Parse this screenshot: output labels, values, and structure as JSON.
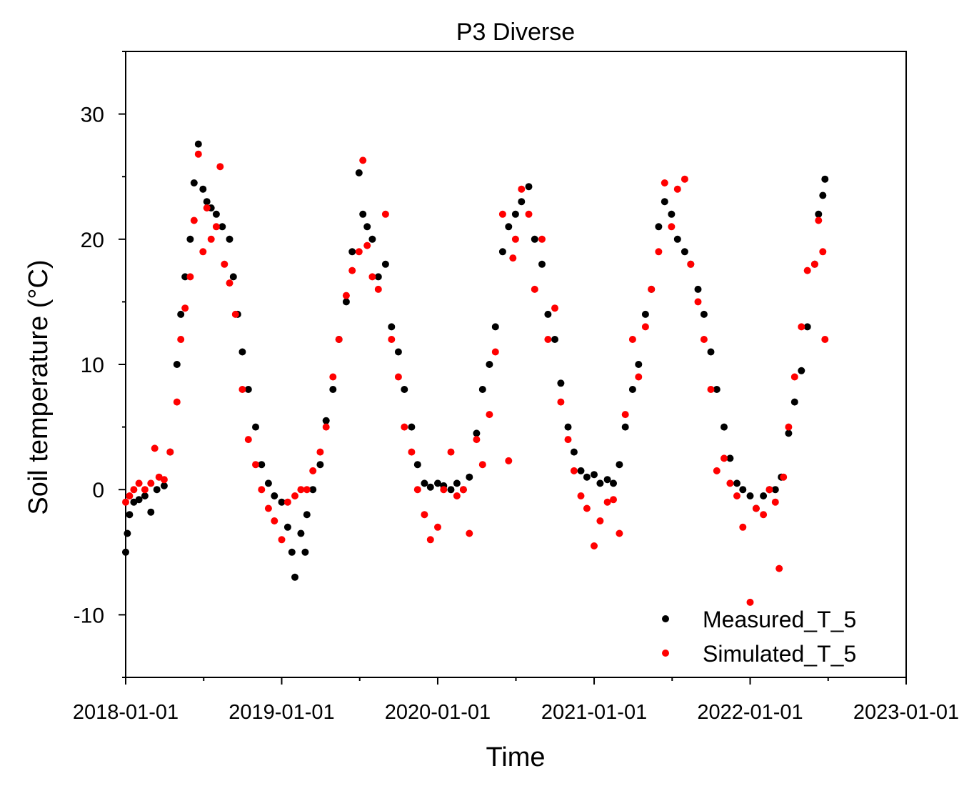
{
  "chart_data": {
    "type": "scatter",
    "title": "P3 Diverse",
    "xlabel": "Time",
    "ylabel": "Soil temperature (°C)",
    "xlim": [
      "2018-01-01",
      "2023-01-01"
    ],
    "ylim": [
      -15,
      35
    ],
    "x_ticks": [
      "2018-01-01",
      "2019-01-01",
      "2020-01-01",
      "2021-01-01",
      "2022-01-01",
      "2023-01-01"
    ],
    "y_ticks": [
      -10,
      0,
      10,
      20,
      30
    ],
    "legend_position": "bottom-right",
    "grid": false,
    "series": [
      {
        "name": "Measured_T_5",
        "color": "#000000",
        "points": [
          [
            "2018-01-01",
            -5.0
          ],
          [
            "2018-01-05",
            -3.5
          ],
          [
            "2018-01-10",
            -2.0
          ],
          [
            "2018-01-20",
            -1.0
          ],
          [
            "2018-02-01",
            -0.8
          ],
          [
            "2018-02-15",
            -0.5
          ],
          [
            "2018-03-01",
            -1.8
          ],
          [
            "2018-03-15",
            0.0
          ],
          [
            "2018-04-01",
            0.3
          ],
          [
            "2018-04-15",
            3.0
          ],
          [
            "2018-05-01",
            10.0
          ],
          [
            "2018-05-10",
            14.0
          ],
          [
            "2018-05-20",
            17.0
          ],
          [
            "2018-06-01",
            20.0
          ],
          [
            "2018-06-10",
            24.5
          ],
          [
            "2018-06-20",
            27.6
          ],
          [
            "2018-07-01",
            24.0
          ],
          [
            "2018-07-10",
            23.0
          ],
          [
            "2018-07-20",
            22.5
          ],
          [
            "2018-08-01",
            22.0
          ],
          [
            "2018-08-15",
            21.0
          ],
          [
            "2018-09-01",
            20.0
          ],
          [
            "2018-09-10",
            17.0
          ],
          [
            "2018-09-20",
            14.0
          ],
          [
            "2018-10-01",
            11.0
          ],
          [
            "2018-10-15",
            8.0
          ],
          [
            "2018-11-01",
            5.0
          ],
          [
            "2018-11-15",
            2.0
          ],
          [
            "2018-12-01",
            0.5
          ],
          [
            "2018-12-15",
            -0.5
          ],
          [
            "2019-01-01",
            -1.0
          ],
          [
            "2019-01-15",
            -3.0
          ],
          [
            "2019-01-25",
            -5.0
          ],
          [
            "2019-02-01",
            -7.0
          ],
          [
            "2019-02-15",
            -3.5
          ],
          [
            "2019-02-25",
            -5.0
          ],
          [
            "2019-03-01",
            -2.0
          ],
          [
            "2019-03-15",
            0.0
          ],
          [
            "2019-04-01",
            2.0
          ],
          [
            "2019-04-15",
            5.5
          ],
          [
            "2019-05-01",
            8.0
          ],
          [
            "2019-05-15",
            12.0
          ],
          [
            "2019-06-01",
            15.0
          ],
          [
            "2019-06-15",
            19.0
          ],
          [
            "2019-07-01",
            25.3
          ],
          [
            "2019-07-10",
            22.0
          ],
          [
            "2019-07-20",
            21.0
          ],
          [
            "2019-08-01",
            20.0
          ],
          [
            "2019-08-15",
            17.0
          ],
          [
            "2019-09-01",
            18.0
          ],
          [
            "2019-09-15",
            13.0
          ],
          [
            "2019-10-01",
            11.0
          ],
          [
            "2019-10-15",
            8.0
          ],
          [
            "2019-11-01",
            5.0
          ],
          [
            "2019-11-15",
            2.0
          ],
          [
            "2019-12-01",
            0.5
          ],
          [
            "2019-12-15",
            0.2
          ],
          [
            "2020-01-01",
            0.5
          ],
          [
            "2020-01-15",
            0.3
          ],
          [
            "2020-02-01",
            0.0
          ],
          [
            "2020-02-15",
            0.5
          ],
          [
            "2020-03-01",
            0.0
          ],
          [
            "2020-03-15",
            1.0
          ],
          [
            "2020-04-01",
            4.5
          ],
          [
            "2020-04-15",
            8.0
          ],
          [
            "2020-05-01",
            10.0
          ],
          [
            "2020-05-15",
            13.0
          ],
          [
            "2020-06-01",
            19.0
          ],
          [
            "2020-06-15",
            21.0
          ],
          [
            "2020-07-01",
            22.0
          ],
          [
            "2020-07-15",
            23.0
          ],
          [
            "2020-08-01",
            24.2
          ],
          [
            "2020-08-15",
            20.0
          ],
          [
            "2020-09-01",
            18.0
          ],
          [
            "2020-09-15",
            14.0
          ],
          [
            "2020-10-01",
            12.0
          ],
          [
            "2020-10-15",
            8.5
          ],
          [
            "2020-11-01",
            5.0
          ],
          [
            "2020-11-15",
            3.0
          ],
          [
            "2020-12-01",
            1.5
          ],
          [
            "2020-12-15",
            1.0
          ],
          [
            "2021-01-01",
            1.2
          ],
          [
            "2021-01-15",
            0.5
          ],
          [
            "2021-02-01",
            0.8
          ],
          [
            "2021-02-15",
            0.5
          ],
          [
            "2021-03-01",
            2.0
          ],
          [
            "2021-03-15",
            5.0
          ],
          [
            "2021-04-01",
            8.0
          ],
          [
            "2021-04-15",
            10.0
          ],
          [
            "2021-05-01",
            14.0
          ],
          [
            "2021-05-15",
            16.0
          ],
          [
            "2021-06-01",
            21.0
          ],
          [
            "2021-06-15",
            23.0
          ],
          [
            "2021-07-01",
            22.0
          ],
          [
            "2021-07-15",
            20.0
          ],
          [
            "2021-08-01",
            19.0
          ],
          [
            "2021-08-15",
            18.0
          ],
          [
            "2021-09-01",
            16.0
          ],
          [
            "2021-09-15",
            14.0
          ],
          [
            "2021-10-01",
            11.0
          ],
          [
            "2021-10-15",
            8.0
          ],
          [
            "2021-11-01",
            5.0
          ],
          [
            "2021-11-15",
            2.5
          ],
          [
            "2021-12-01",
            0.5
          ],
          [
            "2021-12-15",
            0.0
          ],
          [
            "2022-01-01",
            -0.5
          ],
          [
            "2022-01-15",
            -1.5
          ],
          [
            "2022-02-01",
            -0.5
          ],
          [
            "2022-02-15",
            0.0
          ],
          [
            "2022-03-01",
            0.0
          ],
          [
            "2022-03-15",
            1.0
          ],
          [
            "2022-04-01",
            4.5
          ],
          [
            "2022-04-15",
            7.0
          ],
          [
            "2022-05-01",
            9.5
          ],
          [
            "2022-05-15",
            13.0
          ],
          [
            "2022-06-01",
            18.0
          ],
          [
            "2022-06-10",
            22.0
          ],
          [
            "2022-06-20",
            23.5
          ],
          [
            "2022-06-25",
            24.8
          ]
        ]
      },
      {
        "name": "Simulated_T_5",
        "color": "#ff0000",
        "points": [
          [
            "2018-01-01",
            -1.0
          ],
          [
            "2018-01-10",
            -0.5
          ],
          [
            "2018-01-20",
            0.0
          ],
          [
            "2018-02-01",
            0.5
          ],
          [
            "2018-02-15",
            0.0
          ],
          [
            "2018-03-01",
            0.5
          ],
          [
            "2018-03-10",
            3.3
          ],
          [
            "2018-03-20",
            1.0
          ],
          [
            "2018-04-01",
            0.8
          ],
          [
            "2018-04-15",
            3.0
          ],
          [
            "2018-05-01",
            7.0
          ],
          [
            "2018-05-10",
            12.0
          ],
          [
            "2018-05-20",
            14.5
          ],
          [
            "2018-06-01",
            17.0
          ],
          [
            "2018-06-10",
            21.5
          ],
          [
            "2018-06-20",
            26.8
          ],
          [
            "2018-07-01",
            19.0
          ],
          [
            "2018-07-10",
            22.5
          ],
          [
            "2018-07-20",
            20.0
          ],
          [
            "2018-08-01",
            21.0
          ],
          [
            "2018-08-10",
            25.8
          ],
          [
            "2018-08-20",
            18.0
          ],
          [
            "2018-09-01",
            16.5
          ],
          [
            "2018-09-15",
            14.0
          ],
          [
            "2018-10-01",
            8.0
          ],
          [
            "2018-10-15",
            4.0
          ],
          [
            "2018-11-01",
            2.0
          ],
          [
            "2018-11-15",
            0.0
          ],
          [
            "2018-12-01",
            -1.5
          ],
          [
            "2018-12-15",
            -2.5
          ],
          [
            "2019-01-01",
            -4.0
          ],
          [
            "2019-01-15",
            -1.0
          ],
          [
            "2019-02-01",
            -0.5
          ],
          [
            "2019-02-15",
            0.0
          ],
          [
            "2019-03-01",
            0.0
          ],
          [
            "2019-03-15",
            1.5
          ],
          [
            "2019-04-01",
            3.0
          ],
          [
            "2019-04-15",
            5.0
          ],
          [
            "2019-05-01",
            9.0
          ],
          [
            "2019-05-15",
            12.0
          ],
          [
            "2019-06-01",
            15.5
          ],
          [
            "2019-06-15",
            17.5
          ],
          [
            "2019-07-01",
            19.0
          ],
          [
            "2019-07-10",
            26.3
          ],
          [
            "2019-07-20",
            19.5
          ],
          [
            "2019-08-01",
            17.0
          ],
          [
            "2019-08-15",
            16.0
          ],
          [
            "2019-09-01",
            22.0
          ],
          [
            "2019-09-15",
            12.0
          ],
          [
            "2019-10-01",
            9.0
          ],
          [
            "2019-10-15",
            5.0
          ],
          [
            "2019-11-01",
            3.0
          ],
          [
            "2019-11-15",
            0.0
          ],
          [
            "2019-12-01",
            -2.0
          ],
          [
            "2019-12-15",
            -4.0
          ],
          [
            "2020-01-01",
            -3.0
          ],
          [
            "2020-01-15",
            0.0
          ],
          [
            "2020-02-01",
            3.0
          ],
          [
            "2020-02-15",
            -0.5
          ],
          [
            "2020-03-01",
            0.0
          ],
          [
            "2020-03-15",
            -3.5
          ],
          [
            "2020-04-01",
            4.0
          ],
          [
            "2020-04-15",
            2.0
          ],
          [
            "2020-05-01",
            6.0
          ],
          [
            "2020-05-15",
            11.0
          ],
          [
            "2020-06-01",
            22.0
          ],
          [
            "2020-06-15",
            2.3
          ],
          [
            "2020-06-25",
            18.5
          ],
          [
            "2020-07-01",
            20.0
          ],
          [
            "2020-07-15",
            24.0
          ],
          [
            "2020-08-01",
            22.0
          ],
          [
            "2020-08-15",
            16.0
          ],
          [
            "2020-09-01",
            20.0
          ],
          [
            "2020-09-15",
            12.0
          ],
          [
            "2020-10-01",
            14.5
          ],
          [
            "2020-10-15",
            7.0
          ],
          [
            "2020-11-01",
            4.0
          ],
          [
            "2020-11-15",
            1.5
          ],
          [
            "2020-12-01",
            -0.5
          ],
          [
            "2020-12-15",
            -1.5
          ],
          [
            "2021-01-01",
            -4.5
          ],
          [
            "2021-01-15",
            -2.5
          ],
          [
            "2021-02-01",
            -1.0
          ],
          [
            "2021-02-15",
            -0.8
          ],
          [
            "2021-03-01",
            -3.5
          ],
          [
            "2021-03-15",
            6.0
          ],
          [
            "2021-04-01",
            12.0
          ],
          [
            "2021-04-15",
            9.0
          ],
          [
            "2021-05-01",
            13.0
          ],
          [
            "2021-05-15",
            16.0
          ],
          [
            "2021-06-01",
            19.0
          ],
          [
            "2021-06-15",
            24.5
          ],
          [
            "2021-07-01",
            21.0
          ],
          [
            "2021-07-15",
            24.0
          ],
          [
            "2021-08-01",
            24.8
          ],
          [
            "2021-08-15",
            18.0
          ],
          [
            "2021-09-01",
            15.0
          ],
          [
            "2021-09-15",
            12.0
          ],
          [
            "2021-10-01",
            8.0
          ],
          [
            "2021-10-15",
            1.5
          ],
          [
            "2021-11-01",
            2.5
          ],
          [
            "2021-11-15",
            0.5
          ],
          [
            "2021-12-01",
            -0.5
          ],
          [
            "2021-12-15",
            -3.0
          ],
          [
            "2022-01-01",
            -9.0
          ],
          [
            "2022-01-15",
            -1.5
          ],
          [
            "2022-02-01",
            -2.0
          ],
          [
            "2022-02-15",
            0.0
          ],
          [
            "2022-03-01",
            -1.0
          ],
          [
            "2022-03-10",
            -6.3
          ],
          [
            "2022-03-20",
            1.0
          ],
          [
            "2022-04-01",
            5.0
          ],
          [
            "2022-04-15",
            9.0
          ],
          [
            "2022-05-01",
            13.0
          ],
          [
            "2022-05-15",
            17.5
          ],
          [
            "2022-06-01",
            18.0
          ],
          [
            "2022-06-10",
            21.5
          ],
          [
            "2022-06-20",
            19.0
          ],
          [
            "2022-06-25",
            12.0
          ]
        ]
      }
    ]
  }
}
